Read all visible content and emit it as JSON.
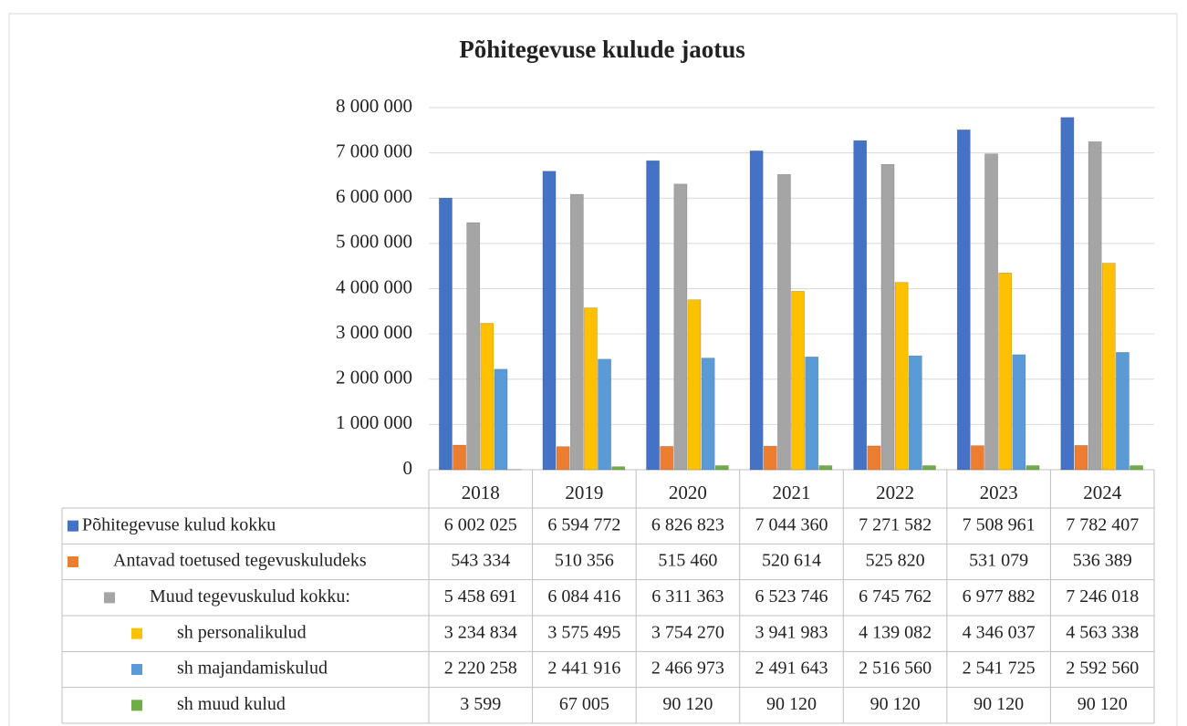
{
  "chart_data": {
    "type": "bar",
    "title": "Põhitegevuse kulude jaotus",
    "categories": [
      "2018",
      "2019",
      "2020",
      "2021",
      "2022",
      "2023",
      "2024"
    ],
    "series": [
      {
        "name": "Põhitegevuse kulud kokku",
        "color": "#4472c4",
        "values": [
          6002025,
          6594772,
          6826823,
          7044360,
          7271582,
          7508961,
          7782407
        ],
        "value_labels": [
          "6 002 025",
          "6 594 772",
          "6 826 823",
          "7 044 360",
          "7 271 582",
          "7 508 961",
          "7 782 407"
        ]
      },
      {
        "name": "Antavad toetused tegevuskuludeks",
        "color": "#ed7d31",
        "values": [
          543334,
          510356,
          515460,
          520614,
          525820,
          531079,
          536389
        ],
        "value_labels": [
          "543 334",
          "510 356",
          "515 460",
          "520 614",
          "525 820",
          "531 079",
          "536 389"
        ]
      },
      {
        "name": "Muud tegevuskulud kokku:",
        "color": "#a5a5a5",
        "values": [
          5458691,
          6084416,
          6311363,
          6523746,
          6745762,
          6977882,
          7246018
        ],
        "value_labels": [
          "5 458 691",
          "6 084 416",
          "6 311 363",
          "6 523 746",
          "6 745 762",
          "6 977 882",
          "7 246 018"
        ]
      },
      {
        "name": "sh personalikulud",
        "color": "#ffc000",
        "values": [
          3234834,
          3575495,
          3754270,
          3941983,
          4139082,
          4346037,
          4563338
        ],
        "value_labels": [
          "3 234 834",
          "3 575 495",
          "3 754 270",
          "3 941 983",
          "4 139 082",
          "4 346 037",
          "4 563 338"
        ]
      },
      {
        "name": "sh majandamiskulud",
        "color": "#5b9bd5",
        "values": [
          2220258,
          2441916,
          2466973,
          2491643,
          2516560,
          2541725,
          2592560
        ],
        "value_labels": [
          "2 220 258",
          "2 441 916",
          "2 466 973",
          "2 491 643",
          "2 516 560",
          "2 541 725",
          "2 592 560"
        ]
      },
      {
        "name": "sh muud kulud",
        "color": "#70ad47",
        "values": [
          3599,
          67005,
          90120,
          90120,
          90120,
          90120,
          90120
        ],
        "value_labels": [
          "3 599",
          "67 005",
          "90 120",
          "90 120",
          "90 120",
          "90 120",
          "90 120"
        ]
      }
    ],
    "ylim": [
      0,
      8000000
    ],
    "yticks": [
      0,
      {
        "value": 1000000,
        "label": "1 000 000"
      },
      {
        "value": 2000000,
        "label": "2 000 000"
      },
      {
        "value": 3000000,
        "label": "3 000 000"
      },
      {
        "value": 4000000,
        "label": "4 000 000"
      },
      {
        "value": 5000000,
        "label": "5 000 000"
      },
      {
        "value": 6000000,
        "label": "6 000 000"
      },
      {
        "value": 7000000,
        "label": "7 000 000"
      },
      {
        "value": 8000000,
        "label": "8 000 000"
      }
    ],
    "grid": true
  }
}
